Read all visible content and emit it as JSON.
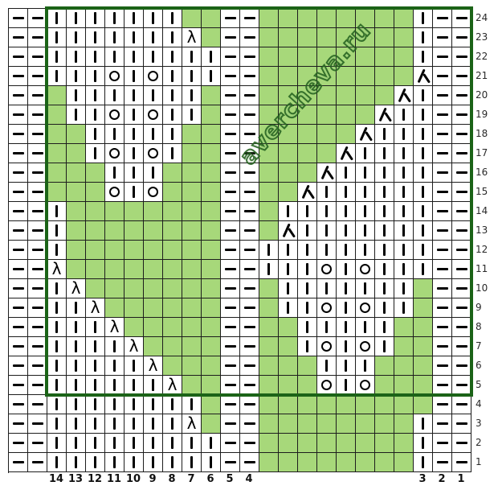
{
  "watermark": {
    "text": "avercheva.ru"
  },
  "colors": {
    "cell_green": "#a7d87a",
    "grid_line": "#1d1d1d",
    "repeat_border": "#1b6317",
    "symbol": "#000000",
    "watermark_green": "#266220",
    "background": "#ffffff"
  },
  "chart_data": {
    "type": "heatmap",
    "subtype": "knitting-pattern-chart",
    "columns": 24,
    "rows": 24,
    "cell_size_px": 24,
    "legend": {
      "P": "purl-dash",
      "K": "knit-bar",
      "O": "yarn-over",
      "L": "left-decrease",
      "D": "double-decrease",
      "G": "green-no-stitch"
    },
    "symbols": {
      "P": "—",
      "K": "|",
      "O": "○",
      "L": "λ",
      "D": "人",
      "G": ""
    },
    "row_labels_right": [
      "24",
      "23",
      "22",
      "21",
      "20",
      "19",
      "18",
      "17",
      "16",
      "15",
      "14",
      "13",
      "12",
      "11",
      "10",
      "9",
      "8",
      "7",
      "6",
      "5",
      "4",
      "3",
      "2",
      "1"
    ],
    "bottom_labels": [
      {
        "col": 3,
        "label": "14"
      },
      {
        "col": 4,
        "label": "13"
      },
      {
        "col": 5,
        "label": "12"
      },
      {
        "col": 6,
        "label": "11"
      },
      {
        "col": 7,
        "label": "10"
      },
      {
        "col": 8,
        "label": "9"
      },
      {
        "col": 9,
        "label": "8"
      },
      {
        "col": 10,
        "label": "7"
      },
      {
        "col": 11,
        "label": "6"
      },
      {
        "col": 12,
        "label": "5"
      },
      {
        "col": 13,
        "label": "4"
      },
      {
        "col": 22,
        "label": "3"
      },
      {
        "col": 23,
        "label": "2"
      },
      {
        "col": 24,
        "label": "1"
      }
    ],
    "repeat_box": {
      "col_start": 3,
      "col_end": 24,
      "row_top_label": "24",
      "row_bottom_label": "5"
    },
    "grid": [
      "PPKKKKKKKGGPPGGGGGGGGKPP",
      "PPKKKKKKKLGPPGGGGGGGGKPP",
      "PPKKKKKKKKKPPGGGGGGGGKPP",
      "PPKKKOKOKKKPPGGGGGGGGDPP",
      "PPGKKKKKKKGPPGGGGGGGDKPP",
      "PPGKKOKOKKGPPGGGGGGDKKPP",
      "PPGGKKKKKGGPPGGGGGDKKKPP",
      "PPGGKOKOKGGPPGGGGDKKKKPP",
      "PPGGGKKKGGGPPGGGDKKKKKPP",
      "PPGGGOKOGGGPPGGDKKKKKKPP",
      "PPKGGGGGGGGPPGKKKKKKKKPP",
      "PPKGGGGGGGGPPGDKKKKKKKPP",
      "PPKGGGGGGGGPPKKKKKKKKKPP",
      "PPLGGGGGGGGPPKKKOKOKKKPP",
      "PPKLGGGGGGGPPGKKKKKKKGPP",
      "PPKKLGGGGGGPPGKKOKOKKGPP",
      "PPKKKLGGGGGPPGGKKKKKGGPP",
      "PPKKKKLGGGGPPGGKOKOKGGPP",
      "PPKKKKKLGGGPPGGGKKKGGGPP",
      "PPKKKKKKLGGPPGGGOKOGGGPP",
      "PPKKKKKKKKGPPGGGGGGGGGPP",
      "PPKKKKKKKLGPPGGGGGGGGKPP",
      "PPKKKKKKKKKPPGGGGGGGGKPP",
      "PPKKKKKKKKKPPGGGGGGGGKPP"
    ]
  }
}
